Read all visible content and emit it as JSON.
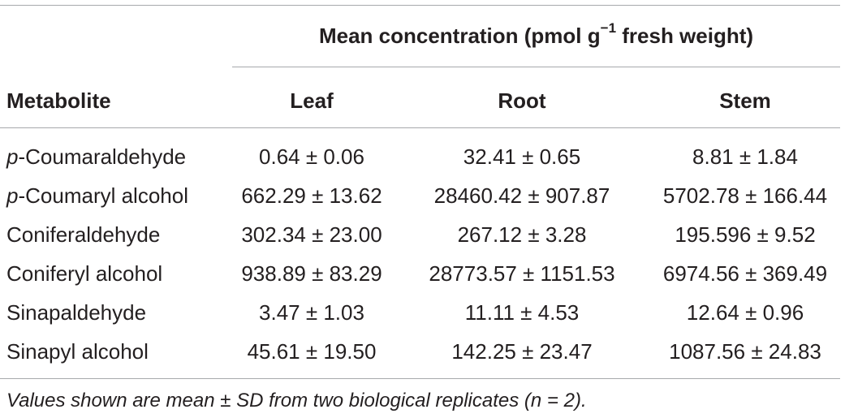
{
  "table": {
    "span_header_main": "Mean concentration (pmol g",
    "span_header_sup": "−1",
    "span_header_tail": " fresh weight)",
    "col_metabolite": "Metabolite",
    "col_leaf": "Leaf",
    "col_root": "Root",
    "col_stem": "Stem",
    "rows": [
      {
        "prefix": "p",
        "name": "-Coumaraldehyde",
        "leaf": "0.64 ± 0.06",
        "root": "32.41 ± 0.65",
        "stem": "8.81 ± 1.84"
      },
      {
        "prefix": "p",
        "name": "-Coumaryl alcohol",
        "leaf": "662.29 ± 13.62",
        "root": "28460.42 ± 907.87",
        "stem": "5702.78 ± 166.44"
      },
      {
        "prefix": "",
        "name": "Coniferaldehyde",
        "leaf": "302.34 ± 23.00",
        "root": "267.12 ± 3.28",
        "stem": "195.596 ± 9.52"
      },
      {
        "prefix": "",
        "name": "Coniferyl alcohol",
        "leaf": "938.89 ± 83.29",
        "root": "28773.57 ± 1151.53",
        "stem": "6974.56 ± 369.49"
      },
      {
        "prefix": "",
        "name": "Sinapaldehyde",
        "leaf": "3.47 ± 1.03",
        "root": "11.11 ± 4.53",
        "stem": "12.64 ± 0.96"
      },
      {
        "prefix": "",
        "name": "Sinapyl alcohol",
        "leaf": "45.61 ± 19.50",
        "root": "142.25 ± 23.47",
        "stem": "1087.56 ± 24.83"
      }
    ],
    "footnote": "Values shown are mean ± SD from two biological replicates (n = 2)."
  }
}
